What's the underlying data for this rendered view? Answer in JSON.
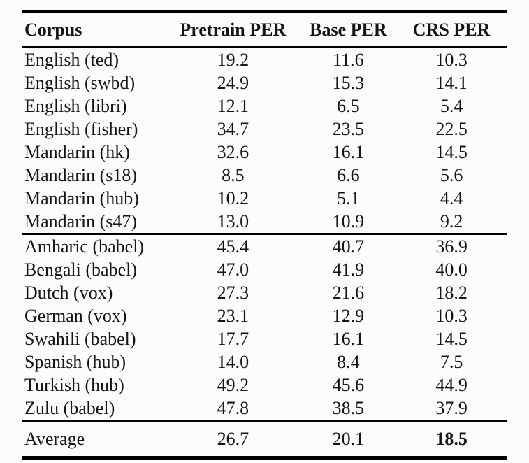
{
  "table": {
    "columns": [
      "Corpus",
      "Pretrain PER",
      "Base PER",
      "CRS PER"
    ],
    "groups": [
      {
        "rows": [
          [
            "English (ted)",
            "19.2",
            "11.6",
            "10.3"
          ],
          [
            "English (swbd)",
            "24.9",
            "15.3",
            "14.1"
          ],
          [
            "English (libri)",
            "12.1",
            "6.5",
            "5.4"
          ],
          [
            "English (fisher)",
            "34.7",
            "23.5",
            "22.5"
          ],
          [
            "Mandarin (hk)",
            "32.6",
            "16.1",
            "14.5"
          ],
          [
            "Mandarin (s18)",
            "8.5",
            "6.6",
            "5.6"
          ],
          [
            "Mandarin (hub)",
            "10.2",
            "5.1",
            "4.4"
          ],
          [
            "Mandarin (s47)",
            "13.0",
            "10.9",
            "9.2"
          ]
        ]
      },
      {
        "rows": [
          [
            "Amharic (babel)",
            "45.4",
            "40.7",
            "36.9"
          ],
          [
            "Bengali (babel)",
            "47.0",
            "41.9",
            "40.0"
          ],
          [
            "Dutch (vox)",
            "27.3",
            "21.6",
            "18.2"
          ],
          [
            "German (vox)",
            "23.1",
            "12.9",
            "10.3"
          ],
          [
            "Swahili (babel)",
            "17.7",
            "16.1",
            "14.5"
          ],
          [
            "Spanish (hub)",
            "14.0",
            "8.4",
            "7.5"
          ],
          [
            "Turkish (hub)",
            "49.2",
            "45.6",
            "44.9"
          ],
          [
            "Zulu (babel)",
            "47.8",
            "38.5",
            "37.9"
          ]
        ]
      }
    ],
    "footer": {
      "label": "Average",
      "values": [
        "26.7",
        "20.1",
        "18.5"
      ]
    }
  },
  "colors": {
    "text": "#141414",
    "rule": "#000000",
    "background": "#fcfcfc"
  }
}
